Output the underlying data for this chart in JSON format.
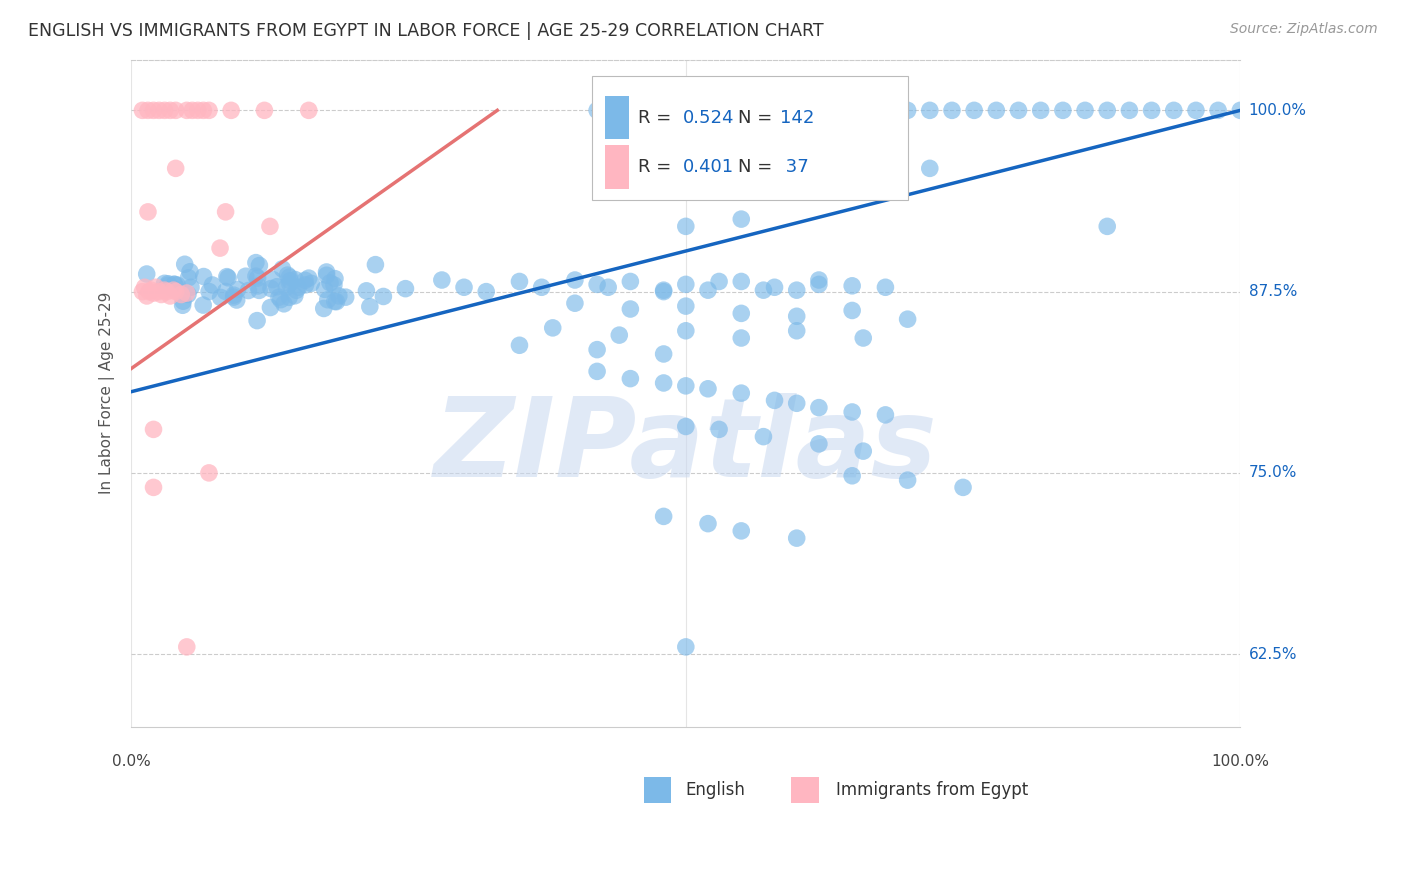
{
  "title": "ENGLISH VS IMMIGRANTS FROM EGYPT IN LABOR FORCE | AGE 25-29 CORRELATION CHART",
  "source_text": "Source: ZipAtlas.com",
  "ylabel": "In Labor Force | Age 25-29",
  "ytick_labels": [
    "62.5%",
    "75.0%",
    "87.5%",
    "100.0%"
  ],
  "ytick_values": [
    0.625,
    0.75,
    0.875,
    1.0
  ],
  "xlim": [
    0.0,
    1.0
  ],
  "ylim": [
    0.575,
    1.035
  ],
  "legend_english_R": "0.524",
  "legend_english_N": "142",
  "legend_egypt_R": "0.401",
  "legend_egypt_N": "37",
  "english_color": "#7CB9E8",
  "egypt_color": "#FFB6C1",
  "english_line_color": "#1565C0",
  "egypt_line_color": "#E57373",
  "grid_color": "#CCCCCC",
  "watermark_text": "ZIPatlas",
  "watermark_color": "#C8D8F0",
  "english_trendline_x": [
    0.0,
    1.0
  ],
  "english_trendline_y": [
    0.806,
    1.0
  ],
  "egypt_trendline_x": [
    0.0,
    0.33
  ],
  "egypt_trendline_y": [
    0.822,
    1.0
  ]
}
